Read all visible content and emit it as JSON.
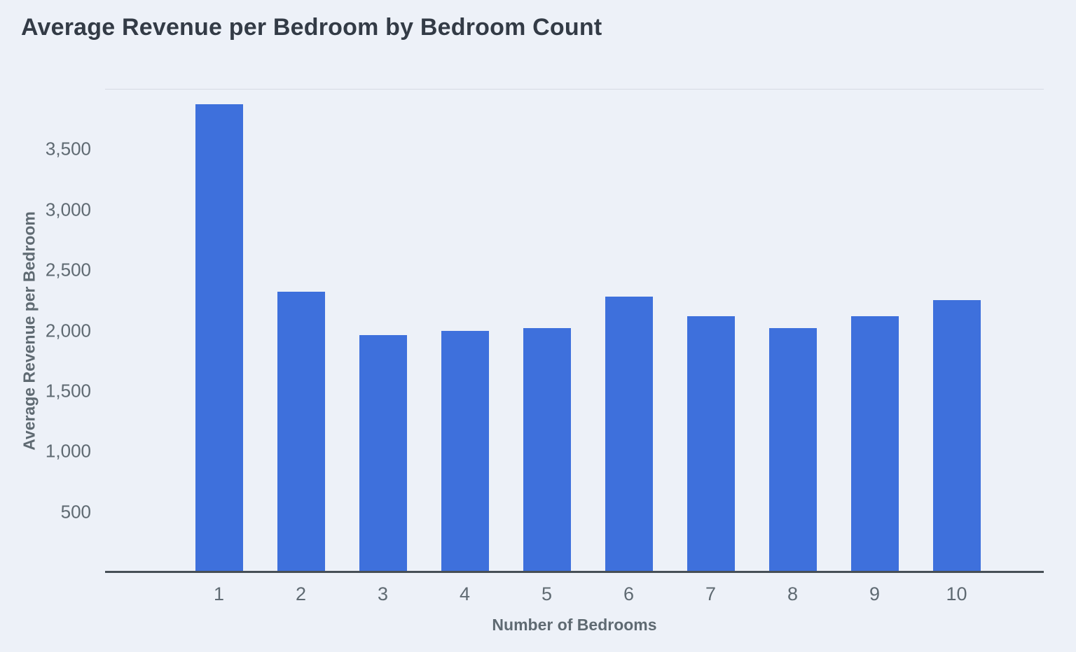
{
  "chart_data": {
    "type": "bar",
    "title": "Average Revenue per Bedroom by Bedroom Count",
    "xlabel": "Number of Bedrooms",
    "ylabel": "Average Revenue per Bedroom",
    "categories": [
      "1",
      "2",
      "3",
      "4",
      "5",
      "6",
      "7",
      "8",
      "9",
      "10"
    ],
    "values": [
      3870,
      2320,
      1960,
      2000,
      2020,
      2280,
      2120,
      2020,
      2120,
      2250
    ],
    "yticks": [
      500,
      1000,
      1500,
      2000,
      2500,
      3000,
      3500
    ],
    "ylim": [
      0,
      4000
    ],
    "bar_color": "#3e70dc",
    "background_color": "#edf1f8",
    "grid": "top-line-only",
    "legend": "none"
  }
}
